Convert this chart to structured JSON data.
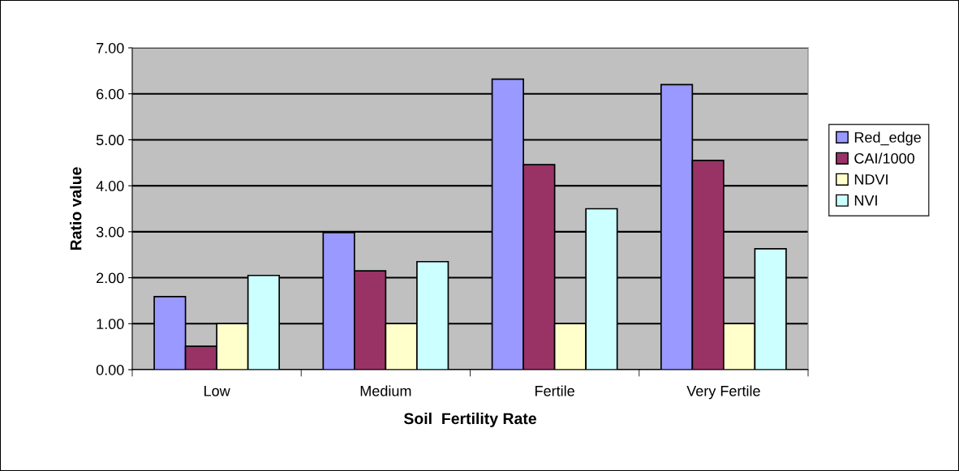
{
  "chart_data": {
    "type": "bar",
    "xlabel": "Soil  Fertility Rate",
    "ylabel": "Ratio value",
    "categories": [
      "Low",
      "Medium",
      "Fertile",
      "Very Fertile"
    ],
    "series": [
      {
        "name": "Red_edge",
        "color": "#9999ff",
        "values": [
          1.59,
          2.98,
          6.32,
          6.2
        ]
      },
      {
        "name": "CAI/1000",
        "color": "#993366",
        "values": [
          0.51,
          2.15,
          4.46,
          4.55
        ]
      },
      {
        "name": "NDVI",
        "color": "#ffffcc",
        "values": [
          1.0,
          1.0,
          1.0,
          1.0
        ]
      },
      {
        "name": "NVI",
        "color": "#ccffff",
        "values": [
          2.05,
          2.35,
          3.5,
          2.63
        ]
      }
    ],
    "ylim": [
      0,
      7
    ],
    "yticks": [
      {
        "value": 0,
        "label": "0.00"
      },
      {
        "value": 1,
        "label": "1.00"
      },
      {
        "value": 2,
        "label": "2.00"
      },
      {
        "value": 3,
        "label": "3.00"
      },
      {
        "value": 4,
        "label": "4.00"
      },
      {
        "value": 5,
        "label": "5.00"
      },
      {
        "value": 6,
        "label": "6.00"
      },
      {
        "value": 7,
        "label": "7.00"
      }
    ],
    "grid": "y",
    "legend": "right"
  }
}
